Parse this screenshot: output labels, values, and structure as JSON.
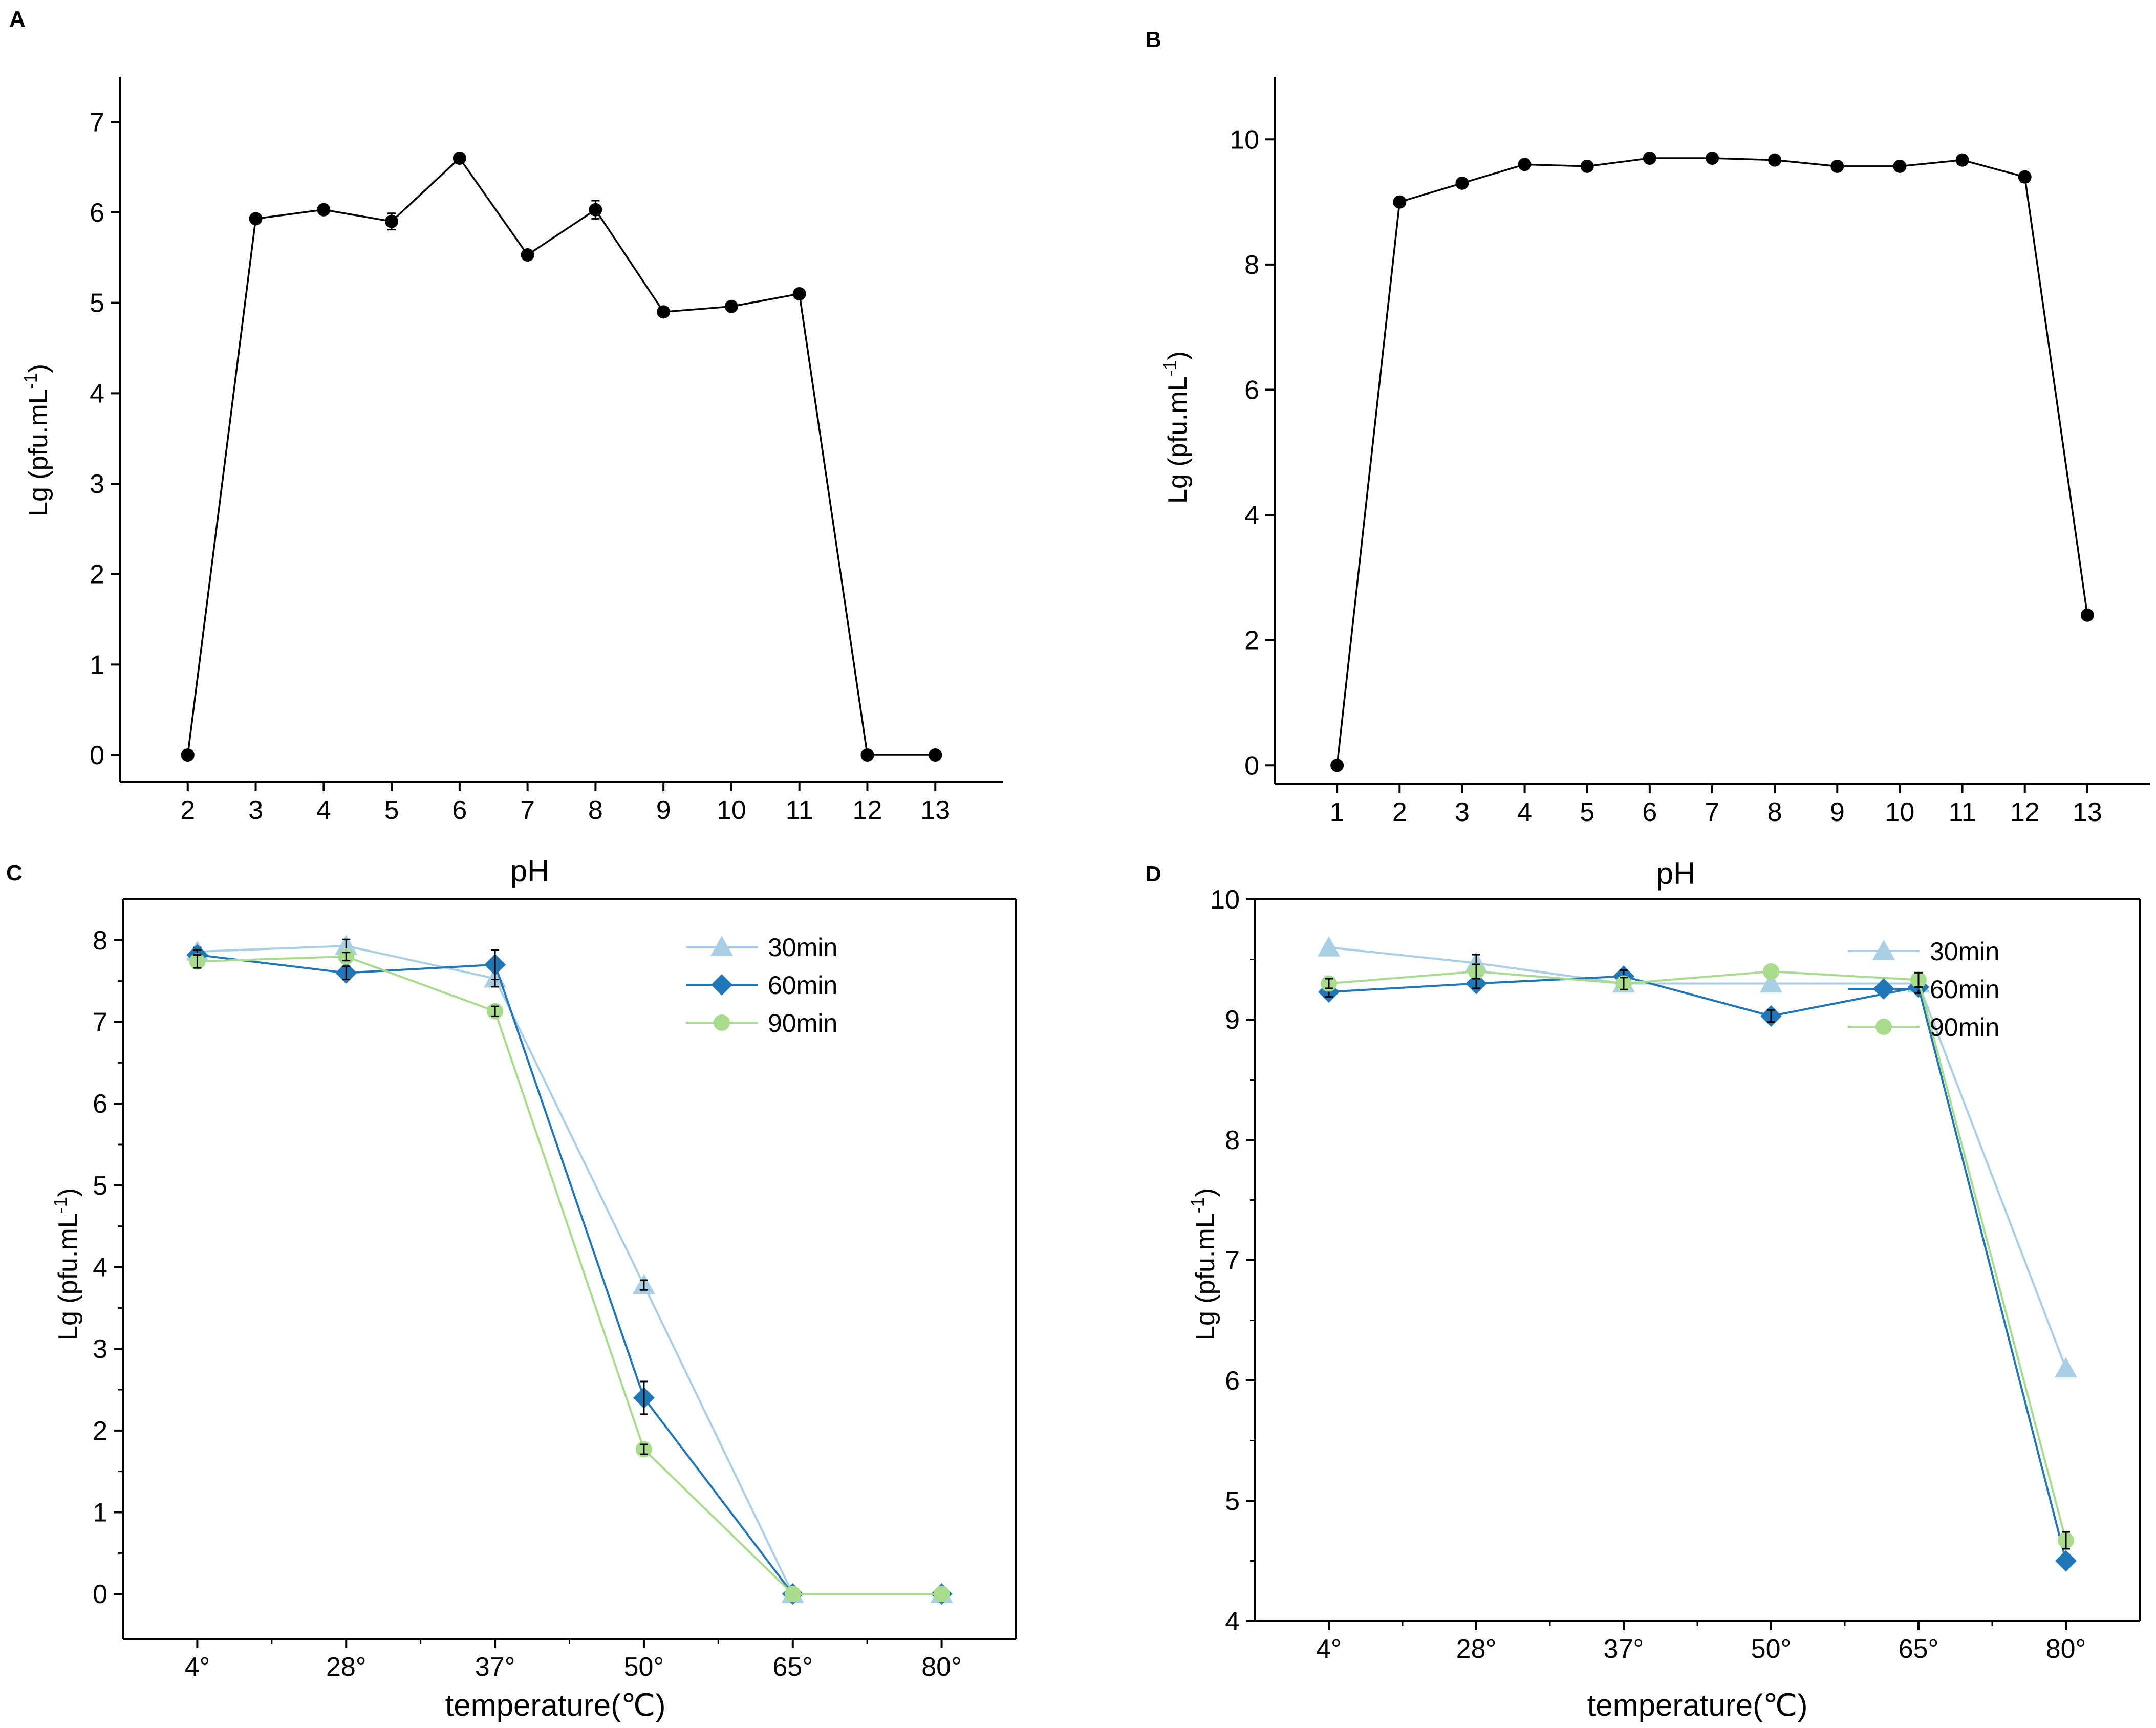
{
  "colors": {
    "black": "#000000",
    "s30": "#a9cfe6",
    "s60": "#1f77b8",
    "s90": "#a8dc8c"
  },
  "chart_data": [
    {
      "id": "A",
      "panel_label": "A",
      "type": "line",
      "xlabel": "pH",
      "ylabel": "Lg (pfu.mL",
      "ylabel_sup": "-1",
      "ylabel_close": ")",
      "xlim": [
        1,
        14
      ],
      "ylim": [
        -0.3,
        7.5
      ],
      "categories": [
        "2",
        "3",
        "4",
        "5",
        "6",
        "7",
        "8",
        "9",
        "10",
        "11",
        "12",
        "13"
      ],
      "x": [
        2,
        3,
        4,
        5,
        6,
        7,
        8,
        9,
        10,
        11,
        12,
        13
      ],
      "yticks": [
        0,
        1,
        2,
        3,
        4,
        5,
        6,
        7
      ],
      "ytick_labels": [
        "0",
        "1",
        "2",
        "3",
        "4",
        "5",
        "6",
        "7"
      ],
      "series": [
        {
          "name": "A",
          "marker": "circle",
          "values": [
            0,
            5.93,
            6.03,
            5.9,
            6.6,
            5.53,
            6.03,
            4.9,
            4.96,
            5.1,
            0,
            0
          ],
          "errors": [
            0,
            0,
            0,
            0.09,
            0,
            0,
            0.1,
            0,
            0,
            0,
            0,
            0
          ]
        }
      ]
    },
    {
      "id": "B",
      "panel_label": "B",
      "type": "line",
      "xlabel": "pH",
      "ylabel": "Lg (pfu.mL",
      "ylabel_sup": "-1",
      "ylabel_close": ")",
      "xlim": [
        0,
        14
      ],
      "ylim": [
        -0.3,
        11
      ],
      "categories": [
        "1",
        "2",
        "3",
        "4",
        "5",
        "6",
        "7",
        "8",
        "9",
        "10",
        "11",
        "12",
        "13"
      ],
      "x": [
        1,
        2,
        3,
        4,
        5,
        6,
        7,
        8,
        9,
        10,
        11,
        12,
        13
      ],
      "yticks": [
        0,
        2,
        4,
        6,
        8,
        10
      ],
      "ytick_labels": [
        "0",
        "2",
        "4",
        "6",
        "8",
        "10"
      ],
      "series": [
        {
          "name": "B",
          "marker": "circle",
          "values": [
            0,
            9.0,
            9.3,
            9.6,
            9.57,
            9.7,
            9.7,
            9.67,
            9.57,
            9.57,
            9.67,
            9.4,
            2.4
          ],
          "errors": [
            0,
            0,
            0,
            0,
            0,
            0.07,
            0.07,
            0,
            0,
            0,
            0,
            0.08,
            0
          ]
        }
      ]
    },
    {
      "id": "C",
      "panel_label": "C",
      "type": "line",
      "xlabel": "temperature(℃)",
      "ylabel": "Lg (pfu.mL",
      "ylabel_sup": "-1",
      "ylabel_close": ")",
      "xlim": [
        0.5,
        6.5
      ],
      "ylim": [
        -0.55,
        8.5
      ],
      "categories": [
        "4°",
        "28°",
        "37°",
        "50°",
        "65°",
        "80°"
      ],
      "yticks": [
        0,
        1,
        2,
        3,
        4,
        5,
        6,
        7,
        8
      ],
      "ytick_labels": [
        "0",
        "1",
        "2",
        "3",
        "4",
        "5",
        "6",
        "7",
        "8"
      ],
      "legend": [
        "30min",
        "60min",
        "90min"
      ],
      "series": [
        {
          "name": "30min",
          "marker": "triangle",
          "values": [
            7.86,
            7.93,
            7.53,
            3.78,
            0,
            0
          ],
          "errors": [
            0.05,
            0.08,
            0.1,
            0.06,
            0,
            0
          ]
        },
        {
          "name": "60min",
          "marker": "diamond",
          "values": [
            7.82,
            7.6,
            7.7,
            2.4,
            0,
            0
          ],
          "errors": [
            0.06,
            0.08,
            0.18,
            0.2,
            0,
            0
          ]
        },
        {
          "name": "90min",
          "marker": "circle",
          "values": [
            7.74,
            7.8,
            7.13,
            1.77,
            0,
            0
          ],
          "errors": [
            0.08,
            0.05,
            0.06,
            0.06,
            0,
            0
          ]
        }
      ]
    },
    {
      "id": "D",
      "panel_label": "D",
      "type": "line",
      "xlabel": "temperature(℃)",
      "ylabel": "Lg (pfu.mL",
      "ylabel_sup": "-1",
      "ylabel_close": ")",
      "xlim": [
        0.5,
        6.5
      ],
      "ylim": [
        4,
        10
      ],
      "categories": [
        "4°",
        "28°",
        "37°",
        "50°",
        "65°",
        "80°"
      ],
      "yticks": [
        4,
        5,
        6,
        7,
        8,
        9,
        10
      ],
      "ytick_labels": [
        "4",
        "5",
        "6",
        "7",
        "8",
        "9",
        "10"
      ],
      "legend": [
        "30min",
        "60min",
        "90min"
      ],
      "series": [
        {
          "name": "30min",
          "marker": "triangle",
          "values": [
            9.6,
            9.47,
            9.3,
            9.3,
            9.3,
            6.1
          ],
          "errors": [
            0,
            0.07,
            0,
            0,
            0,
            0
          ]
        },
        {
          "name": "60min",
          "marker": "diamond",
          "values": [
            9.23,
            9.3,
            9.36,
            9.03,
            9.27,
            4.5
          ],
          "errors": [
            0.04,
            0.04,
            0.05,
            0.05,
            0.05,
            0
          ]
        },
        {
          "name": "90min",
          "marker": "circle",
          "values": [
            9.3,
            9.4,
            9.3,
            9.4,
            9.33,
            4.67
          ],
          "errors": [
            0.04,
            0.06,
            0.05,
            0,
            0.06,
            0.07
          ]
        }
      ]
    }
  ]
}
